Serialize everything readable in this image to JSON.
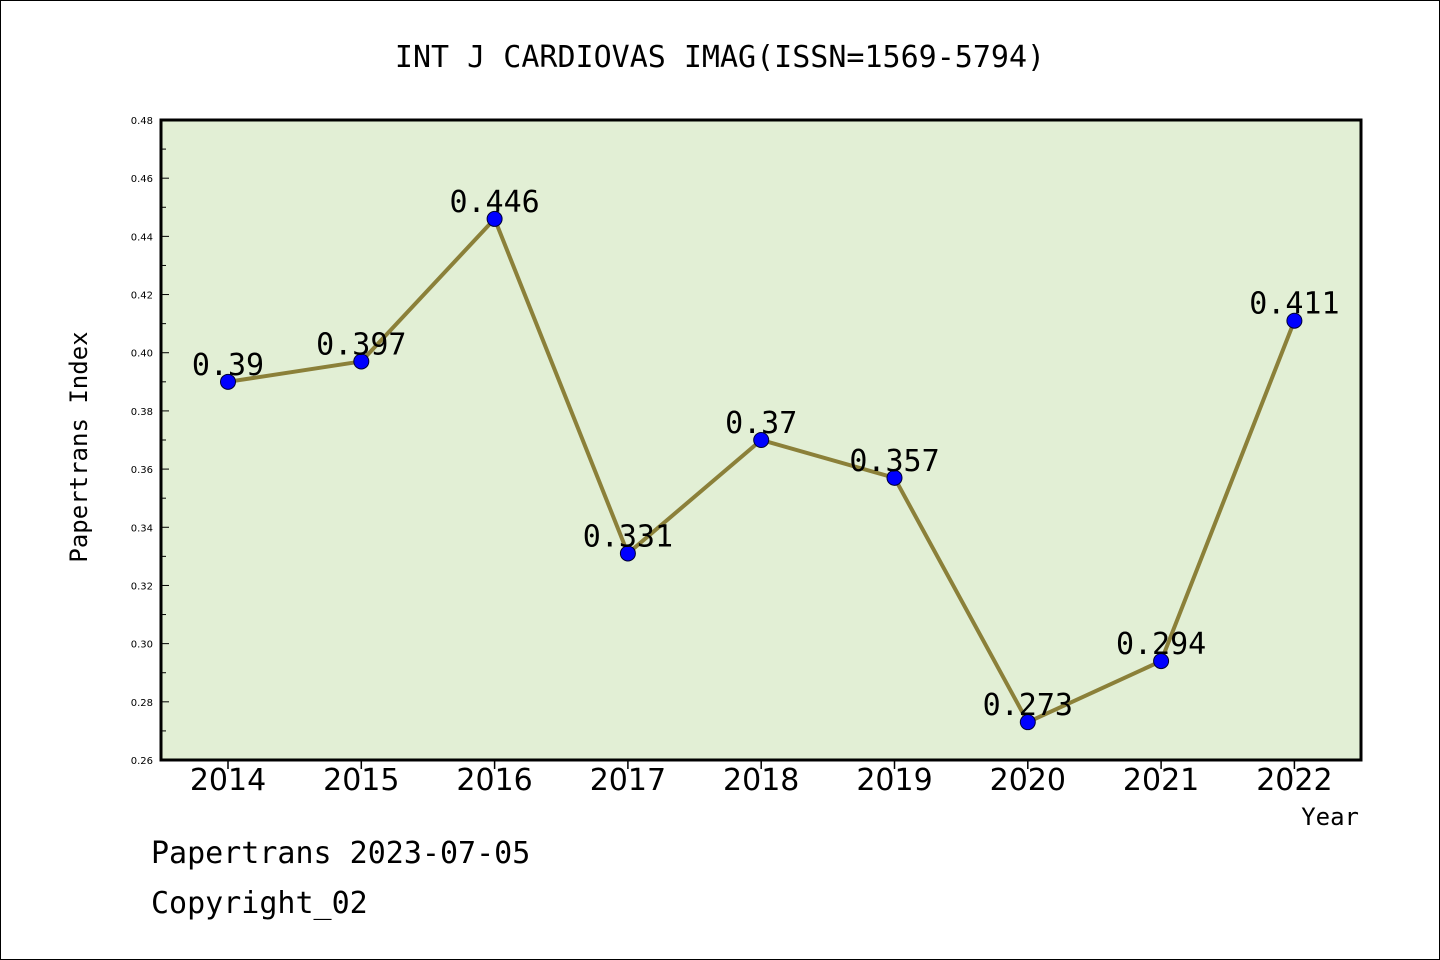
{
  "chart_data": {
    "type": "line",
    "title": "INT J CARDIOVAS IMAG(ISSN=1569-5794)",
    "xlabel": "Year",
    "ylabel": "Papertrans Index",
    "categories": [
      "2014",
      "2015",
      "2016",
      "2017",
      "2018",
      "2019",
      "2020",
      "2021",
      "2022"
    ],
    "values": [
      0.39,
      0.397,
      0.446,
      0.331,
      0.37,
      0.357,
      0.273,
      0.294,
      0.411
    ],
    "data_labels": [
      "0.39",
      "0.397",
      "0.446",
      "0.331",
      "0.37",
      "0.357",
      "0.273",
      "0.294",
      "0.411"
    ],
    "ylim": [
      0.26,
      0.48
    ],
    "y_ticks": [
      "0.26",
      "0.28",
      "0.30",
      "0.32",
      "0.34",
      "0.36",
      "0.38",
      "0.40",
      "0.42",
      "0.44",
      "0.46",
      "0.48"
    ],
    "grid": false,
    "legend": "none",
    "colors": {
      "plot_background": "#e2efd5",
      "line": "#8b8039",
      "marker": "#0000ff"
    }
  },
  "footer": {
    "source": "Papertrans 2023-07-05",
    "copyright": "Copyright_02"
  }
}
